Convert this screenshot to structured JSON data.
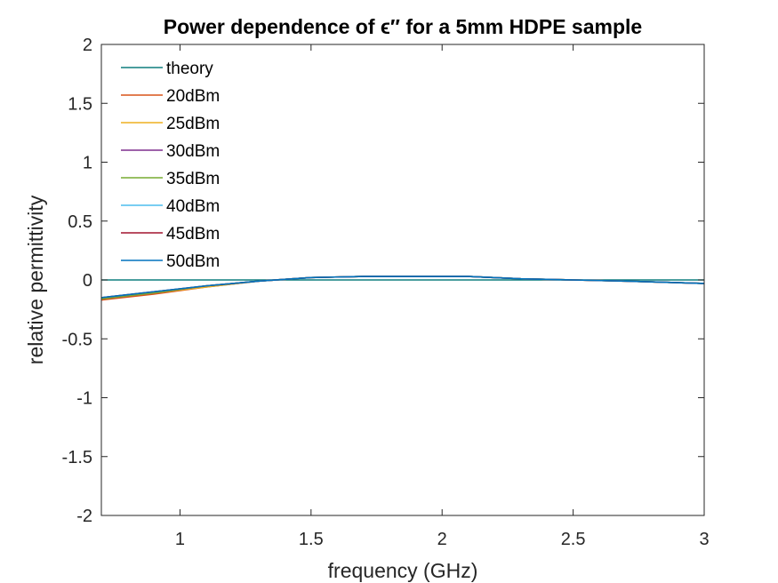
{
  "chart_data": {
    "type": "line",
    "title": "Power dependence of ϵ″ for a 5mm HDPE sample",
    "xlabel": "frequency (GHz)",
    "ylabel": "relative permittivity",
    "xlim": [
      0.7,
      3.0
    ],
    "ylim": [
      -2,
      2
    ],
    "xticks": [
      1,
      1.5,
      2,
      2.5,
      3
    ],
    "xtick_labels": [
      "1",
      "1.5",
      "2",
      "2.5",
      "3"
    ],
    "yticks": [
      -2,
      -1.5,
      -1,
      -0.5,
      0,
      0.5,
      1,
      1.5,
      2
    ],
    "ytick_labels": [
      "-2",
      "-1.5",
      "-1",
      "-0.5",
      "0",
      "0.5",
      "1",
      "1.5",
      "2"
    ],
    "grid": false,
    "legend_position": "top-left",
    "series": [
      {
        "name": "theory",
        "color": "#0e7f7f",
        "x": [
          0.7,
          3.0
        ],
        "y": [
          0.0,
          0.0
        ]
      },
      {
        "name": "20dBm",
        "color": "#d95319",
        "x": [
          0.7,
          0.9,
          1.1,
          1.3,
          1.5,
          1.7,
          1.9,
          2.1,
          2.3,
          2.5,
          2.7,
          3.0
        ],
        "y": [
          -0.17,
          -0.12,
          -0.06,
          -0.01,
          0.02,
          0.03,
          0.03,
          0.03,
          0.01,
          0.0,
          -0.01,
          -0.03
        ]
      },
      {
        "name": "25dBm",
        "color": "#edb120",
        "x": [
          0.7,
          0.9,
          1.1,
          1.3,
          1.5,
          1.7,
          1.9,
          2.1,
          2.3,
          2.5,
          2.7,
          3.0
        ],
        "y": [
          -0.16,
          -0.11,
          -0.06,
          -0.01,
          0.02,
          0.03,
          0.03,
          0.03,
          0.01,
          0.0,
          -0.01,
          -0.03
        ]
      },
      {
        "name": "30dBm",
        "color": "#7e2f8e",
        "x": [
          0.7,
          0.9,
          1.1,
          1.3,
          1.5,
          1.7,
          1.9,
          2.1,
          2.3,
          2.5,
          2.7,
          3.0
        ],
        "y": [
          -0.16,
          -0.11,
          -0.05,
          -0.01,
          0.02,
          0.03,
          0.03,
          0.03,
          0.01,
          0.0,
          -0.01,
          -0.03
        ]
      },
      {
        "name": "35dBm",
        "color": "#77ac30",
        "x": [
          0.7,
          0.9,
          1.1,
          1.3,
          1.5,
          1.7,
          1.9,
          2.1,
          2.3,
          2.5,
          2.7,
          3.0
        ],
        "y": [
          -0.16,
          -0.11,
          -0.05,
          -0.01,
          0.02,
          0.03,
          0.03,
          0.03,
          0.01,
          0.0,
          -0.01,
          -0.03
        ]
      },
      {
        "name": "40dBm",
        "color": "#4dbeee",
        "x": [
          0.7,
          0.9,
          1.1,
          1.3,
          1.5,
          1.7,
          1.9,
          2.1,
          2.3,
          2.5,
          2.7,
          3.0
        ],
        "y": [
          -0.15,
          -0.1,
          -0.05,
          -0.01,
          0.02,
          0.03,
          0.03,
          0.03,
          0.01,
          0.0,
          -0.01,
          -0.03
        ]
      },
      {
        "name": "45dBm",
        "color": "#a2142f",
        "x": [
          0.7,
          0.9,
          1.1,
          1.3,
          1.5,
          1.7,
          1.9,
          2.1,
          2.3,
          2.5,
          2.7,
          3.0
        ],
        "y": [
          -0.15,
          -0.1,
          -0.05,
          -0.01,
          0.02,
          0.03,
          0.03,
          0.03,
          0.01,
          0.0,
          -0.01,
          -0.03
        ]
      },
      {
        "name": "50dBm",
        "color": "#0072bd",
        "x": [
          0.7,
          0.9,
          1.1,
          1.3,
          1.5,
          1.7,
          1.9,
          2.1,
          2.3,
          2.5,
          2.7,
          3.0
        ],
        "y": [
          -0.15,
          -0.1,
          -0.05,
          -0.01,
          0.02,
          0.03,
          0.03,
          0.03,
          0.01,
          0.0,
          -0.01,
          -0.03
        ]
      }
    ]
  }
}
